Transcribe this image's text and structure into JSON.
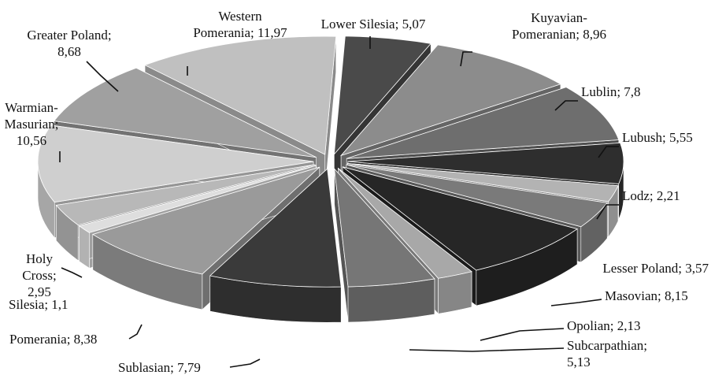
{
  "chart_data": {
    "type": "pie",
    "style": "3d-exploded",
    "title": "",
    "categories": [
      "Lower Silesia",
      "Kuyavian-Pomeranian",
      "Lublin",
      "Lubush",
      "Lodz",
      "Lesser Poland",
      "Masovian",
      "Opolian",
      "Subcarpathian",
      "Sublasian",
      "Pomerania",
      "Silesia",
      "Holy Cross",
      "Warmian-Masurian",
      "Greater Poland",
      "Western Pomerania"
    ],
    "values": [
      5.07,
      8.96,
      7.8,
      5.55,
      2.21,
      3.57,
      8.15,
      2.13,
      5.13,
      7.79,
      8.38,
      1.1,
      2.95,
      10.56,
      8.68,
      11.97
    ],
    "labels": [
      [
        "Lower Silesia; 5,07"
      ],
      [
        "Kuyavian-",
        "Pomeranian; 8,96"
      ],
      [
        "Lublin; 7,8"
      ],
      [
        "Lubush; 5,55"
      ],
      [
        "Lodz; 2,21"
      ],
      [
        "Lesser Poland; 3,57"
      ],
      [
        "Masovian; 8,15"
      ],
      [
        "Opolian; 2,13"
      ],
      [
        "Subcarpathian;",
        "5,13"
      ],
      [
        "Sublasian; 7,79"
      ],
      [
        "Pomerania; 8,38"
      ],
      [
        "Silesia; 1,1"
      ],
      [
        "Holy",
        "Cross;",
        "2,95"
      ],
      [
        "Warmian-",
        "Masurian;",
        "10,56"
      ],
      [
        "Greater Poland;",
        "8,68"
      ],
      [
        "Western",
        "Pomerania; 11,97"
      ]
    ],
    "colors": [
      "#4a4a4a",
      "#8c8c8c",
      "#6e6e6e",
      "#2e2e2e",
      "#b3b3b3",
      "#7a7a7a",
      "#262626",
      "#a8a8a8",
      "#767676",
      "#3a3a3a",
      "#9a9a9a",
      "#dedede",
      "#b8b8b8",
      "#cfcfcf",
      "#a0a0a0",
      "#c0c0c0"
    ],
    "legend": "none",
    "grid": false
  }
}
